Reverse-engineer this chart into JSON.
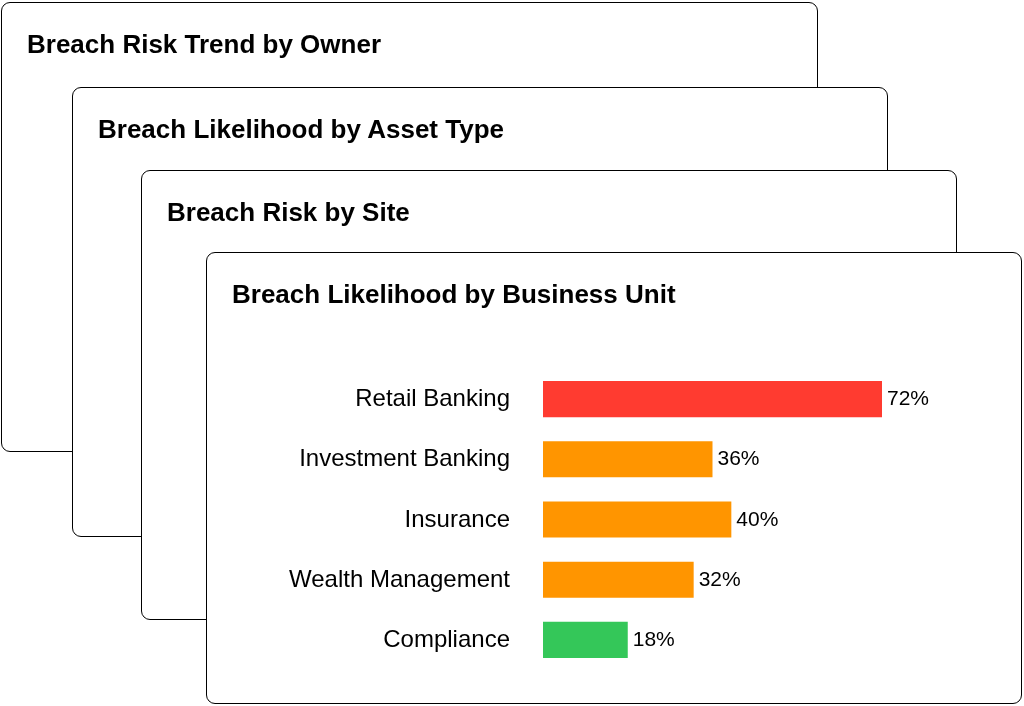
{
  "chart_data": [
    {
      "type": "other",
      "title": "Breach Risk Trend by Owner"
    },
    {
      "type": "other",
      "title": "Breach Likelihood by Asset Type"
    },
    {
      "type": "other",
      "title": "Breach Risk by Site"
    },
    {
      "type": "bar",
      "title": "Breach Likelihood by Business Unit",
      "orientation": "horizontal",
      "categories": [
        "Retail Banking",
        "Investment Banking",
        "Insurance",
        "Wealth Management",
        "Compliance"
      ],
      "values": [
        72,
        36,
        40,
        32,
        18
      ],
      "colors": [
        "#ff3b30",
        "#ff9500",
        "#ff9500",
        "#ff9500",
        "#34c759"
      ],
      "value_labels": [
        "72%",
        "36%",
        "40%",
        "32%",
        "18%"
      ]
    }
  ]
}
